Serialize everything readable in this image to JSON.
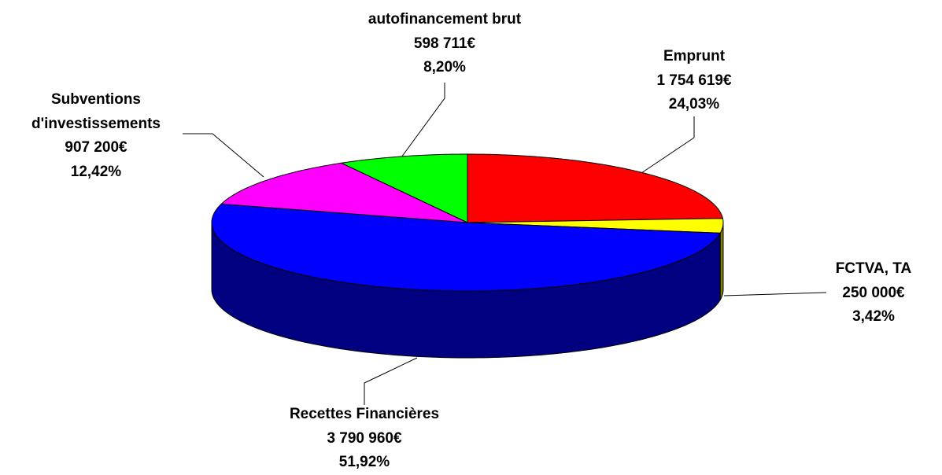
{
  "chart_data": {
    "type": "pie3d",
    "categories": [
      "Emprunt",
      "FCTVA, TA",
      "Recettes Financières",
      "Subventions d'investissements",
      "autofinancement brut"
    ],
    "values": [
      1754619,
      250000,
      3790960,
      907200,
      598711
    ],
    "value_labels": [
      "1 754 619€",
      "250 000€",
      "3 790 960€",
      "907 200€",
      "598 711€"
    ],
    "percents": [
      24.03,
      3.42,
      51.92,
      12.42,
      8.2
    ],
    "percent_labels": [
      "24,03%",
      "3,42%",
      "51,92%",
      "12,42%",
      "8,20%"
    ],
    "colors": [
      "#ff0000",
      "#ffff00",
      "#0000ff",
      "#ff00ff",
      "#00ff00"
    ],
    "side_colors": [
      "#800000",
      "#808000",
      "#000080",
      "#800080",
      "#008000"
    ]
  }
}
